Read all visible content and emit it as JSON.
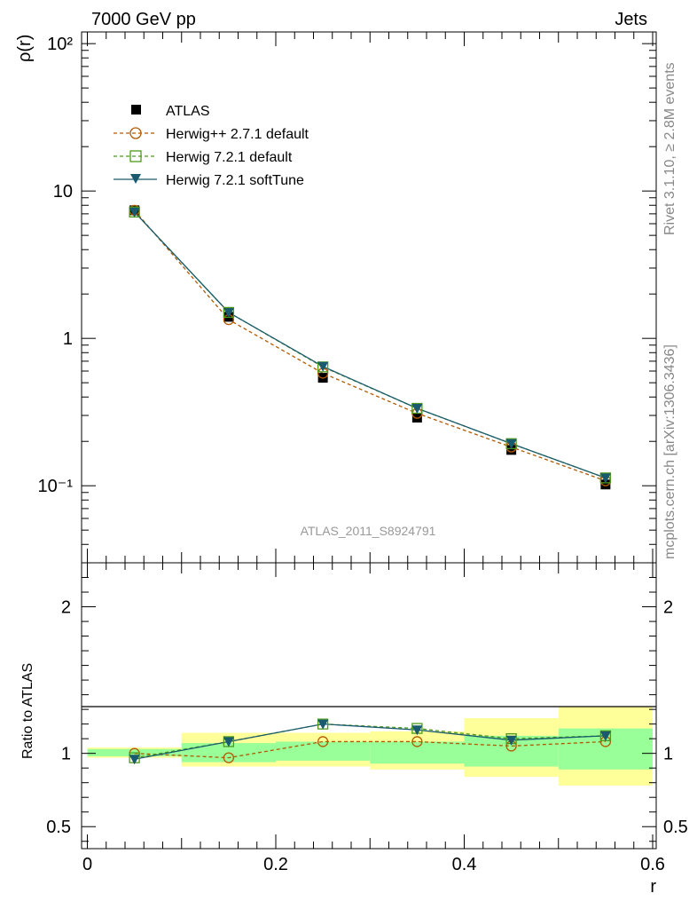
{
  "header": {
    "left": "7000 GeV pp",
    "right": "Jets"
  },
  "side_labels": {
    "rivet": "Rivet 3.1.10, ≥ 2.8M events",
    "source": "mcplots.cern.ch [arXiv:1306.3436]"
  },
  "analysis_id": "ATLAS_2011_S8924791",
  "colors": {
    "atlas": "#000000",
    "herwigpp": "#b35900",
    "herwig721": "#4c9a1a",
    "softtune": "#1a5a6e",
    "band_inner": "#99ff99",
    "band_outer": "#ffff99"
  },
  "chart_data": [
    {
      "type": "scatter",
      "panel": "main",
      "ylabel": "ρ(r)",
      "yscale": "log",
      "xlim": [
        0,
        0.6
      ],
      "ylim": [
        0.03,
        120
      ],
      "y_tick_labels": [
        "10⁻¹",
        "1",
        "10",
        "10²"
      ],
      "legend_position": "top-left",
      "x": [
        0.05,
        0.15,
        0.25,
        0.35,
        0.45,
        0.55
      ],
      "series": [
        {
          "name": "ATLAS",
          "marker": "square",
          "values": [
            7.4,
            1.4,
            0.54,
            0.29,
            0.175,
            0.102
          ]
        },
        {
          "name": "Herwig++ 2.7.1 default",
          "marker": "circle-open",
          "line": "dashed",
          "values": [
            7.4,
            1.34,
            0.58,
            0.31,
            0.183,
            0.108
          ]
        },
        {
          "name": "Herwig 7.2.1 default",
          "marker": "square-open",
          "line": "dashed",
          "values": [
            7.2,
            1.5,
            0.64,
            0.335,
            0.193,
            0.113
          ]
        },
        {
          "name": "Herwig 7.2.1 softTune",
          "marker": "triangle-down",
          "line": "solid",
          "values": [
            7.2,
            1.5,
            0.645,
            0.335,
            0.193,
            0.113
          ]
        }
      ]
    },
    {
      "type": "line",
      "panel": "ratio",
      "xlabel": "r",
      "ylabel": "Ratio to ATLAS",
      "xlim": [
        0,
        0.6
      ],
      "ylim": [
        0.35,
        2.3
      ],
      "x_ticks": [
        0,
        0.2,
        0.4,
        0.6
      ],
      "x_tick_labels": [
        "0",
        "0.2",
        "0.4",
        "0.6"
      ],
      "y_ticks": [
        0.5,
        1,
        2
      ],
      "y_tick_labels": [
        "0.5",
        "1",
        "2"
      ],
      "x": [
        0.05,
        0.15,
        0.25,
        0.35,
        0.45,
        0.55
      ],
      "bands": {
        "bins": [
          [
            0,
            0.1
          ],
          [
            0.1,
            0.2
          ],
          [
            0.2,
            0.3
          ],
          [
            0.3,
            0.4
          ],
          [
            0.4,
            0.5
          ],
          [
            0.5,
            0.6
          ]
        ],
        "inner": [
          [
            0.98,
            1.03
          ],
          [
            0.94,
            1.07
          ],
          [
            0.95,
            1.08
          ],
          [
            0.93,
            1.08
          ],
          [
            0.91,
            1.12
          ],
          [
            0.89,
            1.17
          ]
        ],
        "outer": [
          [
            0.97,
            1.04
          ],
          [
            0.91,
            1.14
          ],
          [
            0.91,
            1.14
          ],
          [
            0.89,
            1.15
          ],
          [
            0.84,
            1.24
          ],
          [
            0.78,
            1.32
          ]
        ]
      },
      "series": [
        {
          "name": "Herwig++ 2.7.1 default",
          "values": [
            1.0,
            0.97,
            1.08,
            1.08,
            1.05,
            1.08
          ]
        },
        {
          "name": "Herwig 7.2.1 default",
          "values": [
            0.97,
            1.08,
            1.2,
            1.17,
            1.1,
            1.12
          ]
        },
        {
          "name": "Herwig 7.2.1 softTune",
          "values": [
            0.96,
            1.08,
            1.2,
            1.16,
            1.09,
            1.12
          ]
        }
      ]
    }
  ]
}
